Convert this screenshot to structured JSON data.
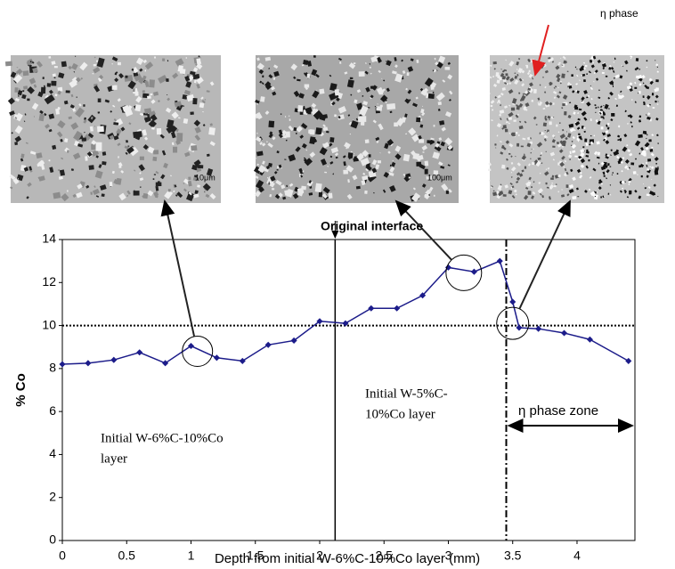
{
  "chart_data": {
    "type": "line",
    "x_label": "Depth from initial W-6%C-10%Co layer (mm)",
    "y_label": "% Co",
    "x": [
      0,
      0.2,
      0.4,
      0.6,
      0.8,
      1.0,
      1.2,
      1.4,
      1.6,
      1.8,
      2.0,
      2.2,
      2.4,
      2.6,
      2.8,
      3.0,
      3.2,
      3.4,
      3.5,
      3.55,
      3.7,
      3.9,
      4.1,
      4.4
    ],
    "values": [
      8.2,
      8.25,
      8.4,
      8.75,
      8.25,
      9.05,
      8.5,
      8.35,
      9.1,
      9.3,
      10.2,
      10.1,
      10.8,
      10.8,
      11.4,
      12.7,
      12.5,
      13.0,
      11.1,
      9.9,
      9.85,
      9.65,
      9.35,
      8.35
    ],
    "color": "#1c1c8a",
    "xlim": [
      0,
      4.45
    ],
    "ylim": [
      0,
      14
    ],
    "xticks": [
      0,
      0.5,
      1,
      1.5,
      2,
      2.5,
      3,
      3.5,
      4
    ],
    "yticks": [
      0,
      2,
      4,
      6,
      8,
      10,
      12,
      14
    ],
    "hline": 10,
    "vlines": [
      2.12,
      3.45
    ],
    "annotations": {
      "interface": "Original interface",
      "layer1": [
        "Initial W-6%C-10%Co",
        "layer"
      ],
      "layer2": [
        "Initial W-5%C-",
        "10%Co layer"
      ],
      "zone": "η phase zone",
      "eta": "η phase",
      "scale1": "10μm",
      "scale2": "100μm"
    }
  }
}
